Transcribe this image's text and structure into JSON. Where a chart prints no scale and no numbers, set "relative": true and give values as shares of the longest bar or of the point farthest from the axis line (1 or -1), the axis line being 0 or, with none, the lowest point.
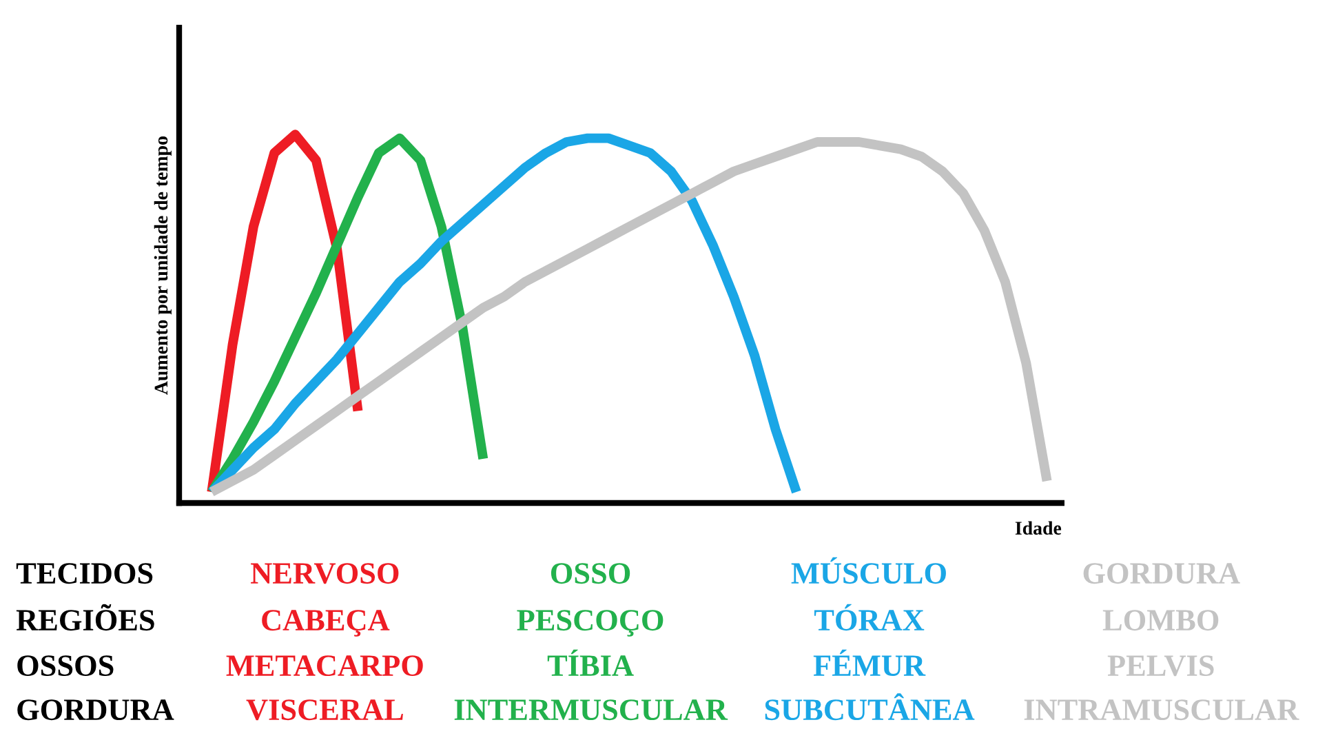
{
  "chart_data": {
    "type": "line",
    "relative": true,
    "ylabel": "Aumento por unidade de tempo",
    "xlabel": "Idade",
    "line_style": "solid",
    "marker": "none",
    "grid": false,
    "legend": false,
    "categories": [
      null,
      null,
      null,
      null,
      null,
      null,
      null,
      null,
      null,
      null,
      null,
      null,
      null,
      null,
      null,
      null,
      null,
      null,
      null,
      null,
      null,
      null,
      null,
      null,
      null,
      null,
      null,
      null,
      null,
      null,
      null,
      null,
      null,
      null,
      null,
      null,
      null,
      null,
      null,
      null,
      null
    ],
    "series": [
      {
        "color": "#ee1c24",
        "values": [
          0.03,
          0.43,
          0.75,
          0.95,
          1.0,
          0.93,
          0.69,
          0.25,
          null,
          null,
          null,
          null,
          null,
          null,
          null,
          null,
          null,
          null,
          null,
          null,
          null,
          null,
          null,
          null,
          null,
          null,
          null,
          null,
          null,
          null,
          null,
          null,
          null,
          null,
          null,
          null,
          null,
          null,
          null,
          null,
          null
        ]
      },
      {
        "color": "#22b14c",
        "values": [
          0.03,
          0.12,
          0.22,
          0.33,
          0.45,
          0.57,
          0.7,
          0.83,
          0.95,
          0.99,
          0.93,
          0.75,
          0.48,
          0.12,
          null,
          null,
          null,
          null,
          null,
          null,
          null,
          null,
          null,
          null,
          null,
          null,
          null,
          null,
          null,
          null,
          null,
          null,
          null,
          null,
          null,
          null,
          null,
          null,
          null,
          null,
          null
        ]
      },
      {
        "color": "#1aa6e6",
        "values": [
          0.03,
          0.09,
          0.15,
          0.2,
          0.27,
          0.33,
          0.39,
          0.46,
          0.53,
          0.6,
          0.65,
          0.71,
          0.76,
          0.81,
          0.86,
          0.91,
          0.95,
          0.98,
          0.99,
          0.99,
          0.97,
          0.95,
          0.9,
          0.82,
          0.7,
          0.56,
          0.4,
          0.2,
          0.03,
          null,
          null,
          null,
          null,
          null,
          null,
          null,
          null,
          null,
          null,
          null,
          null
        ]
      },
      {
        "color": "#c3c3c3",
        "values": [
          0.03,
          0.06,
          0.09,
          0.13,
          0.17,
          0.21,
          0.25,
          0.29,
          0.33,
          0.37,
          0.41,
          0.45,
          0.49,
          0.53,
          0.56,
          0.6,
          0.63,
          0.66,
          0.69,
          0.72,
          0.75,
          0.78,
          0.81,
          0.84,
          0.87,
          0.9,
          0.92,
          0.94,
          0.96,
          0.98,
          0.98,
          0.98,
          0.97,
          0.96,
          0.94,
          0.9,
          0.84,
          0.74,
          0.6,
          0.38,
          0.06
        ]
      }
    ],
    "annotations": [
      "TECIDOS",
      "NERVOSO",
      "OSSO",
      "MÚSCULO",
      "GORDURA",
      "REGIÕES",
      "CABEÇA",
      "PESCOÇO",
      "TÓRAX",
      "LOMBO",
      "OSSOS",
      "METACARPO",
      "TÍBIA",
      "FÉMUR",
      "PELVIS",
      "GORDURA",
      "VISCERAL",
      "INTERMUSCULAR",
      "SUBCUTÂNEA",
      "INTRAMUSCULAR"
    ]
  }
}
